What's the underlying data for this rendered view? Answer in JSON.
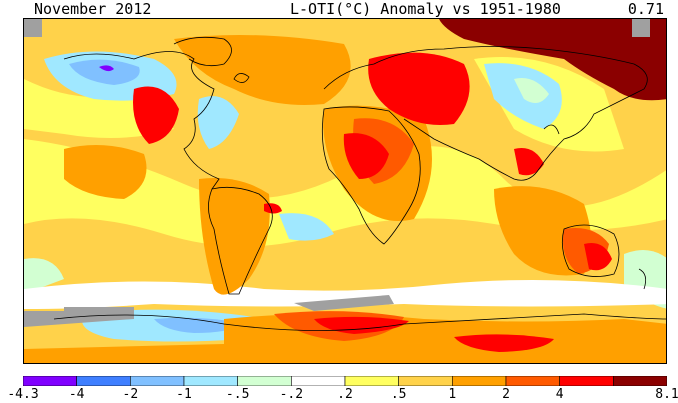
{
  "header": {
    "date_label": "November 2012",
    "title": "L-OTI(°C) Anomaly vs 1951-1980",
    "global_mean": "0.71"
  },
  "legend": {
    "ticks": [
      "-4.3",
      "-4",
      "-2",
      "-1",
      "-.5",
      "-.2",
      ".2",
      ".5",
      "1",
      "2",
      "4",
      "8.1"
    ],
    "colors": [
      "#8000ff",
      "#3f7fff",
      "#80c0ff",
      "#a0e8ff",
      "#d2ffd2",
      "#ffffff",
      "#ffff60",
      "#ffd24a",
      "#ffa000",
      "#ff5a00",
      "#ff0000",
      "#8b0000"
    ],
    "missing_color": "#a0a0a0"
  },
  "map": {
    "projection": "equirectangular",
    "coastlines": true,
    "dominant_color": "#ffd24a"
  }
}
